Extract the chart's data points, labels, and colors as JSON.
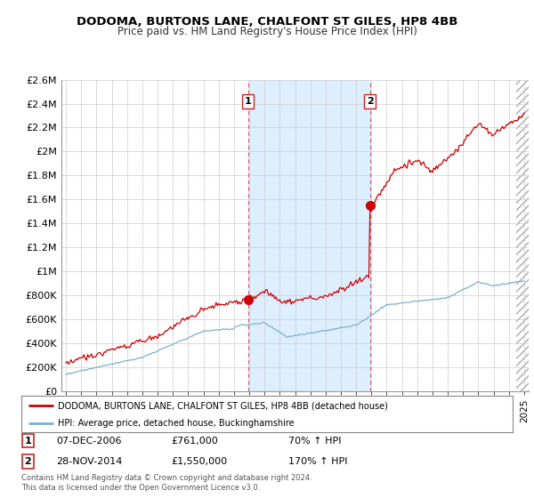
{
  "title": "DODOMA, BURTONS LANE, CHALFONT ST GILES, HP8 4BB",
  "subtitle": "Price paid vs. HM Land Registry's House Price Index (HPI)",
  "legend_line1": "DODOMA, BURTONS LANE, CHALFONT ST GILES, HP8 4BB (detached house)",
  "legend_line2": "HPI: Average price, detached house, Buckinghamshire",
  "annotation1_label": "1",
  "annotation1_date": "07-DEC-2006",
  "annotation1_price": "£761,000",
  "annotation1_pct": "70% ↑ HPI",
  "annotation2_label": "2",
  "annotation2_date": "28-NOV-2014",
  "annotation2_price": "£1,550,000",
  "annotation2_pct": "170% ↑ HPI",
  "copyright": "Contains HM Land Registry data © Crown copyright and database right 2024.\nThis data is licensed under the Open Government Licence v3.0.",
  "red_color": "#cc0000",
  "blue_color": "#7bafd4",
  "plot_bg": "#ffffff",
  "grid_color": "#cccccc",
  "span_color": "#ddeeff",
  "vline_color": "#cc6666",
  "ylim": [
    0,
    2600000
  ],
  "yticks": [
    0,
    200000,
    400000,
    600000,
    800000,
    1000000,
    1200000,
    1400000,
    1600000,
    1800000,
    2000000,
    2200000,
    2400000,
    2600000
  ],
  "ytick_labels": [
    "£0",
    "£200K",
    "£400K",
    "£600K",
    "£800K",
    "£1M",
    "£1.2M",
    "£1.4M",
    "£1.6M",
    "£1.8M",
    "£2M",
    "£2.2M",
    "£2.4M",
    "£2.6M"
  ],
  "xlim_start": 1994.7,
  "xlim_end": 2025.3,
  "point1_x": 2006.92,
  "point1_y": 761000,
  "point2_x": 2014.91,
  "point2_y": 1550000,
  "vline1_x": 2006.92,
  "vline2_x": 2014.91
}
